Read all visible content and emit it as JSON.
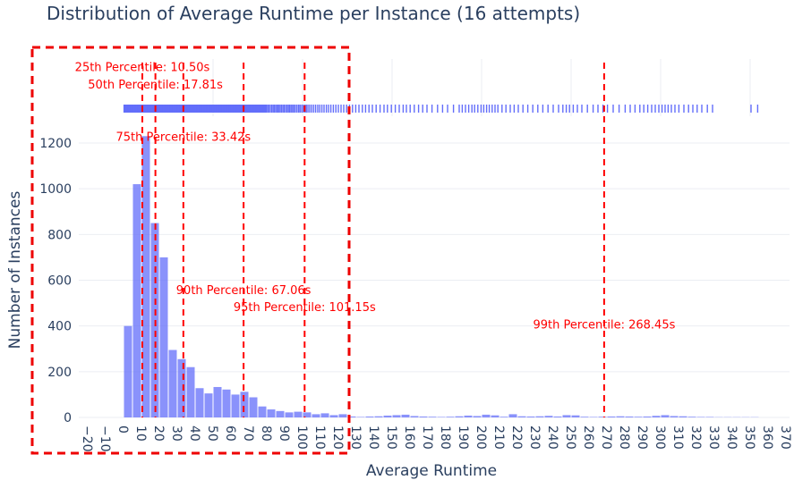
{
  "chart_data": {
    "type": "bar",
    "title": "Distribution of Average Runtime per Instance (16 attempts)",
    "xlabel": "Average Runtime",
    "ylabel": "Number of Instances",
    "xlim": [
      -25,
      372
    ],
    "ylim": [
      0,
      1350
    ],
    "bin_width": 5,
    "x_ticks": [
      -20,
      -10,
      0,
      10,
      20,
      30,
      40,
      50,
      60,
      70,
      80,
      90,
      100,
      110,
      120,
      130,
      140,
      150,
      160,
      170,
      180,
      190,
      200,
      210,
      220,
      230,
      240,
      250,
      260,
      270,
      280,
      290,
      300,
      310,
      320,
      330,
      340,
      350,
      360,
      370
    ],
    "x_tick_labels": [
      "−20",
      "−10",
      "0",
      "10",
      "20",
      "30",
      "40",
      "50",
      "60",
      "70",
      "80",
      "90",
      "100",
      "110",
      "120",
      "130",
      "140",
      "150",
      "160",
      "170",
      "180",
      "190",
      "200",
      "210",
      "220",
      "230",
      "240",
      "250",
      "260",
      "270",
      "280",
      "290",
      "300",
      "310",
      "320",
      "330",
      "340",
      "350",
      "360",
      "370"
    ],
    "y_ticks": [
      0,
      200,
      400,
      600,
      800,
      1000,
      1200
    ],
    "y_tick_labels": [
      "0",
      "200",
      "400",
      "600",
      "800",
      "1000",
      "1200"
    ],
    "grid": true,
    "bar_color": "#636efa",
    "bins": [
      {
        "x": 2.5,
        "value": 400
      },
      {
        "x": 7.5,
        "value": 1020
      },
      {
        "x": 12.5,
        "value": 1230
      },
      {
        "x": 17.5,
        "value": 850
      },
      {
        "x": 22.5,
        "value": 700
      },
      {
        "x": 27.5,
        "value": 295
      },
      {
        "x": 32.5,
        "value": 255
      },
      {
        "x": 37.5,
        "value": 220
      },
      {
        "x": 42.5,
        "value": 128
      },
      {
        "x": 47.5,
        "value": 105
      },
      {
        "x": 52.5,
        "value": 133
      },
      {
        "x": 57.5,
        "value": 122
      },
      {
        "x": 62.5,
        "value": 100
      },
      {
        "x": 67.5,
        "value": 112
      },
      {
        "x": 72.5,
        "value": 88
      },
      {
        "x": 77.5,
        "value": 48
      },
      {
        "x": 82.5,
        "value": 35
      },
      {
        "x": 87.5,
        "value": 28
      },
      {
        "x": 92.5,
        "value": 22
      },
      {
        "x": 97.5,
        "value": 25
      },
      {
        "x": 102.5,
        "value": 22
      },
      {
        "x": 107.5,
        "value": 14
      },
      {
        "x": 112.5,
        "value": 18
      },
      {
        "x": 117.5,
        "value": 10
      },
      {
        "x": 122.5,
        "value": 14
      },
      {
        "x": 127.5,
        "value": 4
      },
      {
        "x": 132.5,
        "value": 2
      },
      {
        "x": 137.5,
        "value": 4
      },
      {
        "x": 142.5,
        "value": 5
      },
      {
        "x": 147.5,
        "value": 8
      },
      {
        "x": 152.5,
        "value": 10
      },
      {
        "x": 157.5,
        "value": 12
      },
      {
        "x": 162.5,
        "value": 6
      },
      {
        "x": 167.5,
        "value": 4
      },
      {
        "x": 172.5,
        "value": 3
      },
      {
        "x": 177.5,
        "value": 2
      },
      {
        "x": 182.5,
        "value": 3
      },
      {
        "x": 187.5,
        "value": 5
      },
      {
        "x": 192.5,
        "value": 8
      },
      {
        "x": 197.5,
        "value": 6
      },
      {
        "x": 202.5,
        "value": 12
      },
      {
        "x": 207.5,
        "value": 9
      },
      {
        "x": 212.5,
        "value": 3
      },
      {
        "x": 217.5,
        "value": 14
      },
      {
        "x": 222.5,
        "value": 5
      },
      {
        "x": 227.5,
        "value": 4
      },
      {
        "x": 232.5,
        "value": 5
      },
      {
        "x": 237.5,
        "value": 7
      },
      {
        "x": 242.5,
        "value": 4
      },
      {
        "x": 247.5,
        "value": 10
      },
      {
        "x": 252.5,
        "value": 9
      },
      {
        "x": 257.5,
        "value": 3
      },
      {
        "x": 262.5,
        "value": 2
      },
      {
        "x": 267.5,
        "value": 3
      },
      {
        "x": 272.5,
        "value": 4
      },
      {
        "x": 277.5,
        "value": 5
      },
      {
        "x": 282.5,
        "value": 4
      },
      {
        "x": 287.5,
        "value": 3
      },
      {
        "x": 292.5,
        "value": 4
      },
      {
        "x": 297.5,
        "value": 7
      },
      {
        "x": 302.5,
        "value": 10
      },
      {
        "x": 307.5,
        "value": 6
      },
      {
        "x": 312.5,
        "value": 5
      },
      {
        "x": 317.5,
        "value": 3
      },
      {
        "x": 322.5,
        "value": 2
      },
      {
        "x": 327.5,
        "value": 2
      },
      {
        "x": 332.5,
        "value": 1
      },
      {
        "x": 337.5,
        "value": 1
      },
      {
        "x": 342.5,
        "value": 1
      },
      {
        "x": 347.5,
        "value": 1
      },
      {
        "x": 352.5,
        "value": 1
      }
    ],
    "rug": {
      "color": "#636efa",
      "values": [
        0.3,
        0.7,
        1.0,
        1.4,
        1.8,
        2.1,
        2.5,
        2.8,
        3.2,
        3.6,
        3.9,
        4.3,
        4.7,
        5.0,
        5.4,
        5.8,
        6.1,
        6.5,
        6.9,
        7.2,
        7.6,
        8.0,
        8.3,
        8.7,
        9.1,
        9.4,
        9.8,
        10.2,
        10.5,
        10.9,
        11.3,
        11.6,
        12.0,
        12.4,
        12.7,
        13.1,
        13.5,
        13.8,
        14.2,
        14.6,
        14.9,
        15.3,
        15.7,
        16.0,
        16.4,
        16.8,
        17.1,
        17.5,
        17.9,
        18.2,
        18.6,
        19.0,
        19.3,
        19.7,
        20.1,
        20.4,
        20.8,
        21.2,
        21.5,
        21.9,
        22.3,
        22.6,
        23.0,
        23.4,
        23.7,
        24.1,
        24.5,
        24.8,
        25.2,
        25.6,
        25.9,
        26.3,
        26.7,
        27.0,
        27.4,
        27.8,
        28.1,
        28.5,
        28.9,
        29.2,
        29.6,
        30.0,
        30.3,
        30.7,
        31.1,
        31.4,
        31.8,
        32.2,
        32.5,
        32.9,
        33.3,
        33.6,
        34.0,
        34.4,
        34.7,
        35.1,
        35.5,
        35.8,
        36.2,
        36.6,
        36.9,
        37.3,
        37.7,
        38.0,
        38.4,
        38.8,
        39.1,
        39.5,
        39.9,
        40.2,
        40.6,
        41.0,
        41.3,
        41.7,
        42.1,
        42.4,
        42.8,
        43.2,
        43.5,
        43.9,
        44.3,
        44.6,
        45.0,
        45.4,
        45.7,
        46.1,
        46.5,
        46.8,
        47.2,
        47.6,
        47.9,
        48.3,
        48.7,
        49.0,
        49.4,
        49.8,
        50.1,
        50.5,
        50.9,
        51.2,
        51.6,
        52.0,
        52.3,
        52.7,
        53.1,
        53.4,
        53.8,
        54.2,
        54.5,
        54.9,
        55.3,
        55.6,
        56.0,
        56.4,
        56.7,
        57.1,
        57.5,
        57.8,
        58.2,
        58.6,
        58.9,
        59.3,
        59.7,
        60.0,
        60.4,
        60.8,
        61.1,
        61.5,
        61.9,
        62.2,
        62.6,
        63.0,
        63.3,
        63.7,
        64.1,
        64.4,
        64.8,
        65.2,
        65.5,
        65.9,
        66.3,
        66.6,
        67.0,
        67.4,
        67.7,
        68.1,
        68.5,
        68.8,
        69.2,
        69.6,
        69.9,
        70.3,
        70.7,
        71.0,
        71.4,
        71.8,
        72.1,
        72.5,
        72.9,
        73.2,
        73.6,
        74.0,
        74.3,
        74.7,
        75.1,
        75.4,
        75.8,
        76.2,
        76.5,
        76.9,
        77.3,
        77.6,
        78.0,
        78.4,
        78.7,
        79.1,
        79.5,
        79.8,
        80.5,
        81.2,
        82.0,
        82.8,
        83.6,
        84.3,
        85.1,
        85.9,
        86.6,
        87.4,
        88.2,
        89.0,
        89.7,
        90.5,
        91.3,
        92.1,
        92.8,
        93.6,
        94.4,
        95.2,
        96.0,
        96.9,
        97.8,
        98.6,
        99.5,
        100.4,
        101.3,
        102.1,
        103.0,
        104.0,
        105.1,
        106.2,
        107.3,
        108.5,
        109.6,
        110.8,
        112.0,
        113.3,
        114.5,
        115.8,
        117.2,
        118.6,
        120.0,
        121.5,
        123.0,
        124.6,
        126.2,
        127.9,
        129.7,
        131.5,
        133.4,
        135.2,
        137.1,
        139.0,
        141.1,
        143.3,
        145.5,
        147.4,
        149.6,
        151.8,
        154.0,
        156.2,
        158.0,
        160.1,
        162.4,
        164.8,
        167.1,
        169.5,
        172.3,
        175.4,
        178.2,
        181.0,
        184.3,
        187.5,
        189.2,
        191.0,
        192.8,
        194.6,
        196.1,
        197.9,
        199.7,
        201.2,
        202.8,
        204.3,
        205.9,
        207.5,
        209.1,
        211.4,
        213.6,
        216.0,
        218.2,
        220.5,
        223.1,
        225.8,
        228.6,
        231.4,
        234.2,
        237.1,
        240.0,
        243.0,
        245.4,
        247.3,
        249.1,
        251.2,
        253.5,
        256.0,
        259.1,
        262.3,
        265.0,
        267.8,
        270.3,
        273.5,
        276.8,
        280.2,
        283.0,
        285.7,
        288.4,
        290.6,
        292.8,
        295.0,
        297.0,
        299.0,
        300.8,
        302.5,
        304.2,
        306.0,
        308.0,
        310.2,
        313.0,
        315.6,
        318.0,
        320.4,
        323.0,
        326.1,
        329.0,
        350.5,
        354.2
      ]
    },
    "percentiles": [
      {
        "label": "25th Percentile: 10.50s",
        "value": 10.5,
        "label_y": 1530
      },
      {
        "label": "50th Percentile: 17.81s",
        "value": 17.81,
        "label_y": 1455
      },
      {
        "label": "75th Percentile: 33.42s",
        "value": 33.42,
        "label_y": 1225
      },
      {
        "label": "90th Percentile: 67.06s",
        "value": 67.06,
        "label_y": 555
      },
      {
        "label": "95th Percentile: 101.15s",
        "value": 101.15,
        "label_y": 480
      },
      {
        "label": "99th Percentile: 268.45s",
        "value": 268.45,
        "label_y": 405
      }
    ],
    "percentile_color": "#ff0000"
  }
}
